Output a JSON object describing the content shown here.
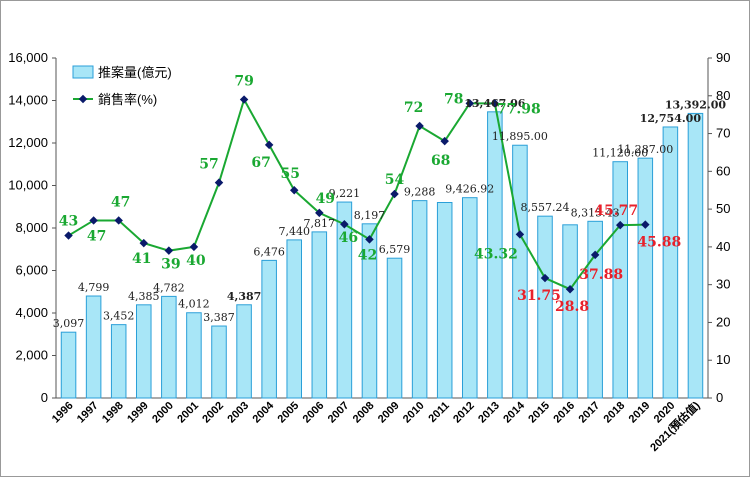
{
  "chart_data": {
    "type": "bar+line",
    "categories": [
      "1996",
      "1997",
      "1998",
      "1999",
      "2000",
      "2001",
      "2002",
      "2003",
      "2004",
      "2005",
      "2006",
      "2007",
      "2008",
      "2009",
      "2010",
      "2011",
      "2012",
      "2013",
      "2014",
      "2015",
      "2016",
      "2017",
      "2018",
      "2019",
      "2020",
      "2021(預估值)"
    ],
    "bar_series": {
      "name": "推案量(億元)",
      "values": [
        3097,
        4799,
        3452,
        4385,
        4782,
        4012,
        3387,
        4387,
        6476,
        7440,
        7817,
        9221,
        8197,
        6579,
        9288,
        9200,
        9426.92,
        13467.06,
        11895,
        8557.24,
        8150,
        8315.43,
        11120,
        11287,
        12754,
        13392
      ],
      "color": "#a8e6f7",
      "border": "#2a9fd8"
    },
    "line_series": {
      "name": "銷售率(%)",
      "values": [
        43,
        47,
        47,
        41,
        39,
        40,
        57,
        79,
        67,
        55,
        49,
        46,
        42,
        54,
        72,
        68,
        78,
        77.98,
        43.32,
        31.75,
        28.8,
        37.88,
        45.77,
        45.88
      ],
      "color": "#1aa832",
      "marker_color": "#0a1a6a"
    },
    "bar_labels": [
      {
        "index": 0,
        "text": "3,097",
        "color": "#222222"
      },
      {
        "index": 1,
        "text": "4,799",
        "color": "#222222"
      },
      {
        "index": 2,
        "text": "3,452",
        "color": "#222222"
      },
      {
        "index": 3,
        "text": "4,385",
        "color": "#222222"
      },
      {
        "index": 4,
        "text": "4,782",
        "color": "#222222"
      },
      {
        "index": 5,
        "text": "4,012",
        "color": "#222222"
      },
      {
        "index": 6,
        "text": "3,387",
        "color": "#222222"
      },
      {
        "index": 7,
        "text": "4,387",
        "color": "#e8202a",
        "bold": true
      },
      {
        "index": 8,
        "text": "6,476",
        "color": "#222222"
      },
      {
        "index": 9,
        "text": "7,440",
        "color": "#222222"
      },
      {
        "index": 10,
        "text": "7,817",
        "color": "#222222"
      },
      {
        "index": 11,
        "text": "9,221",
        "color": "#222222"
      },
      {
        "index": 12,
        "text": "8,197",
        "color": "#222222"
      },
      {
        "index": 13,
        "text": "6,579",
        "color": "#222222"
      },
      {
        "index": 14,
        "text": "9,288",
        "color": "#222222"
      },
      {
        "index": 16,
        "text": "9,426.92",
        "color": "#222222"
      },
      {
        "index": 17,
        "text": "13,467.06",
        "color": "#e8202a",
        "bold": true
      },
      {
        "index": 18,
        "text": "11,895.00",
        "color": "#222222"
      },
      {
        "index": 19,
        "text": "8,557.24",
        "color": "#222222"
      },
      {
        "index": 21,
        "text": "8,315.43",
        "color": "#222222"
      },
      {
        "index": 22,
        "text": "11,120.00",
        "color": "#222222"
      },
      {
        "index": 23,
        "text": "11,287.00",
        "color": "#222222"
      },
      {
        "index": 24,
        "text": "12,754.00",
        "color": "#e8202a",
        "bold": true,
        "large": true
      },
      {
        "index": 25,
        "text": "13,392.00",
        "color": "#e8202a",
        "bold": true
      }
    ],
    "line_labels": [
      {
        "index": 0,
        "text": "43",
        "color": "#1aa832"
      },
      {
        "index": 1,
        "text": "47",
        "color": "#1aa832"
      },
      {
        "index": 2,
        "text": "47",
        "color": "#1aa832"
      },
      {
        "index": 3,
        "text": "41",
        "color": "#1aa832"
      },
      {
        "index": 4,
        "text": "39",
        "color": "#1aa832"
      },
      {
        "index": 5,
        "text": "40",
        "color": "#1aa832"
      },
      {
        "index": 6,
        "text": "57",
        "color": "#1aa832"
      },
      {
        "index": 7,
        "text": "79",
        "color": "#1aa832"
      },
      {
        "index": 8,
        "text": "67",
        "color": "#1aa832"
      },
      {
        "index": 9,
        "text": "55",
        "color": "#1aa832"
      },
      {
        "index": 10,
        "text": "49",
        "color": "#1aa832"
      },
      {
        "index": 11,
        "text": "46",
        "color": "#1aa832"
      },
      {
        "index": 12,
        "text": "42",
        "color": "#1aa832"
      },
      {
        "index": 13,
        "text": "54",
        "color": "#1aa832"
      },
      {
        "index": 14,
        "text": "72",
        "color": "#1aa832"
      },
      {
        "index": 15,
        "text": "68",
        "color": "#1aa832"
      },
      {
        "index": 16,
        "text": "78",
        "color": "#1aa832"
      },
      {
        "index": 17,
        "text": "77.98",
        "color": "#1aa832"
      },
      {
        "index": 18,
        "text": "43.32",
        "color": "#1aa832"
      },
      {
        "index": 19,
        "text": "31.75",
        "color": "#e8202a"
      },
      {
        "index": 20,
        "text": "28.8",
        "color": "#e8202a"
      },
      {
        "index": 21,
        "text": "37.88",
        "color": "#e8202a"
      },
      {
        "index": 22,
        "text": "45.77",
        "color": "#e8202a"
      },
      {
        "index": 23,
        "text": "45.88",
        "color": "#e8202a"
      }
    ],
    "y_left": {
      "min": 0,
      "max": 16000,
      "step": 2000,
      "ticks": [
        "0",
        "2,000",
        "4,000",
        "6,000",
        "8,000",
        "10,000",
        "12,000",
        "14,000",
        "16,000"
      ]
    },
    "y_right": {
      "min": 0,
      "max": 90,
      "step": 10,
      "ticks": [
        "0",
        "10",
        "20",
        "30",
        "40",
        "50",
        "60",
        "70",
        "80",
        "90"
      ]
    },
    "legend": {
      "position": "top-left",
      "items": [
        "推案量(億元)",
        "銷售率(%)"
      ]
    },
    "grid": false,
    "title": "",
    "xlabel": "",
    "ylabel": ""
  }
}
